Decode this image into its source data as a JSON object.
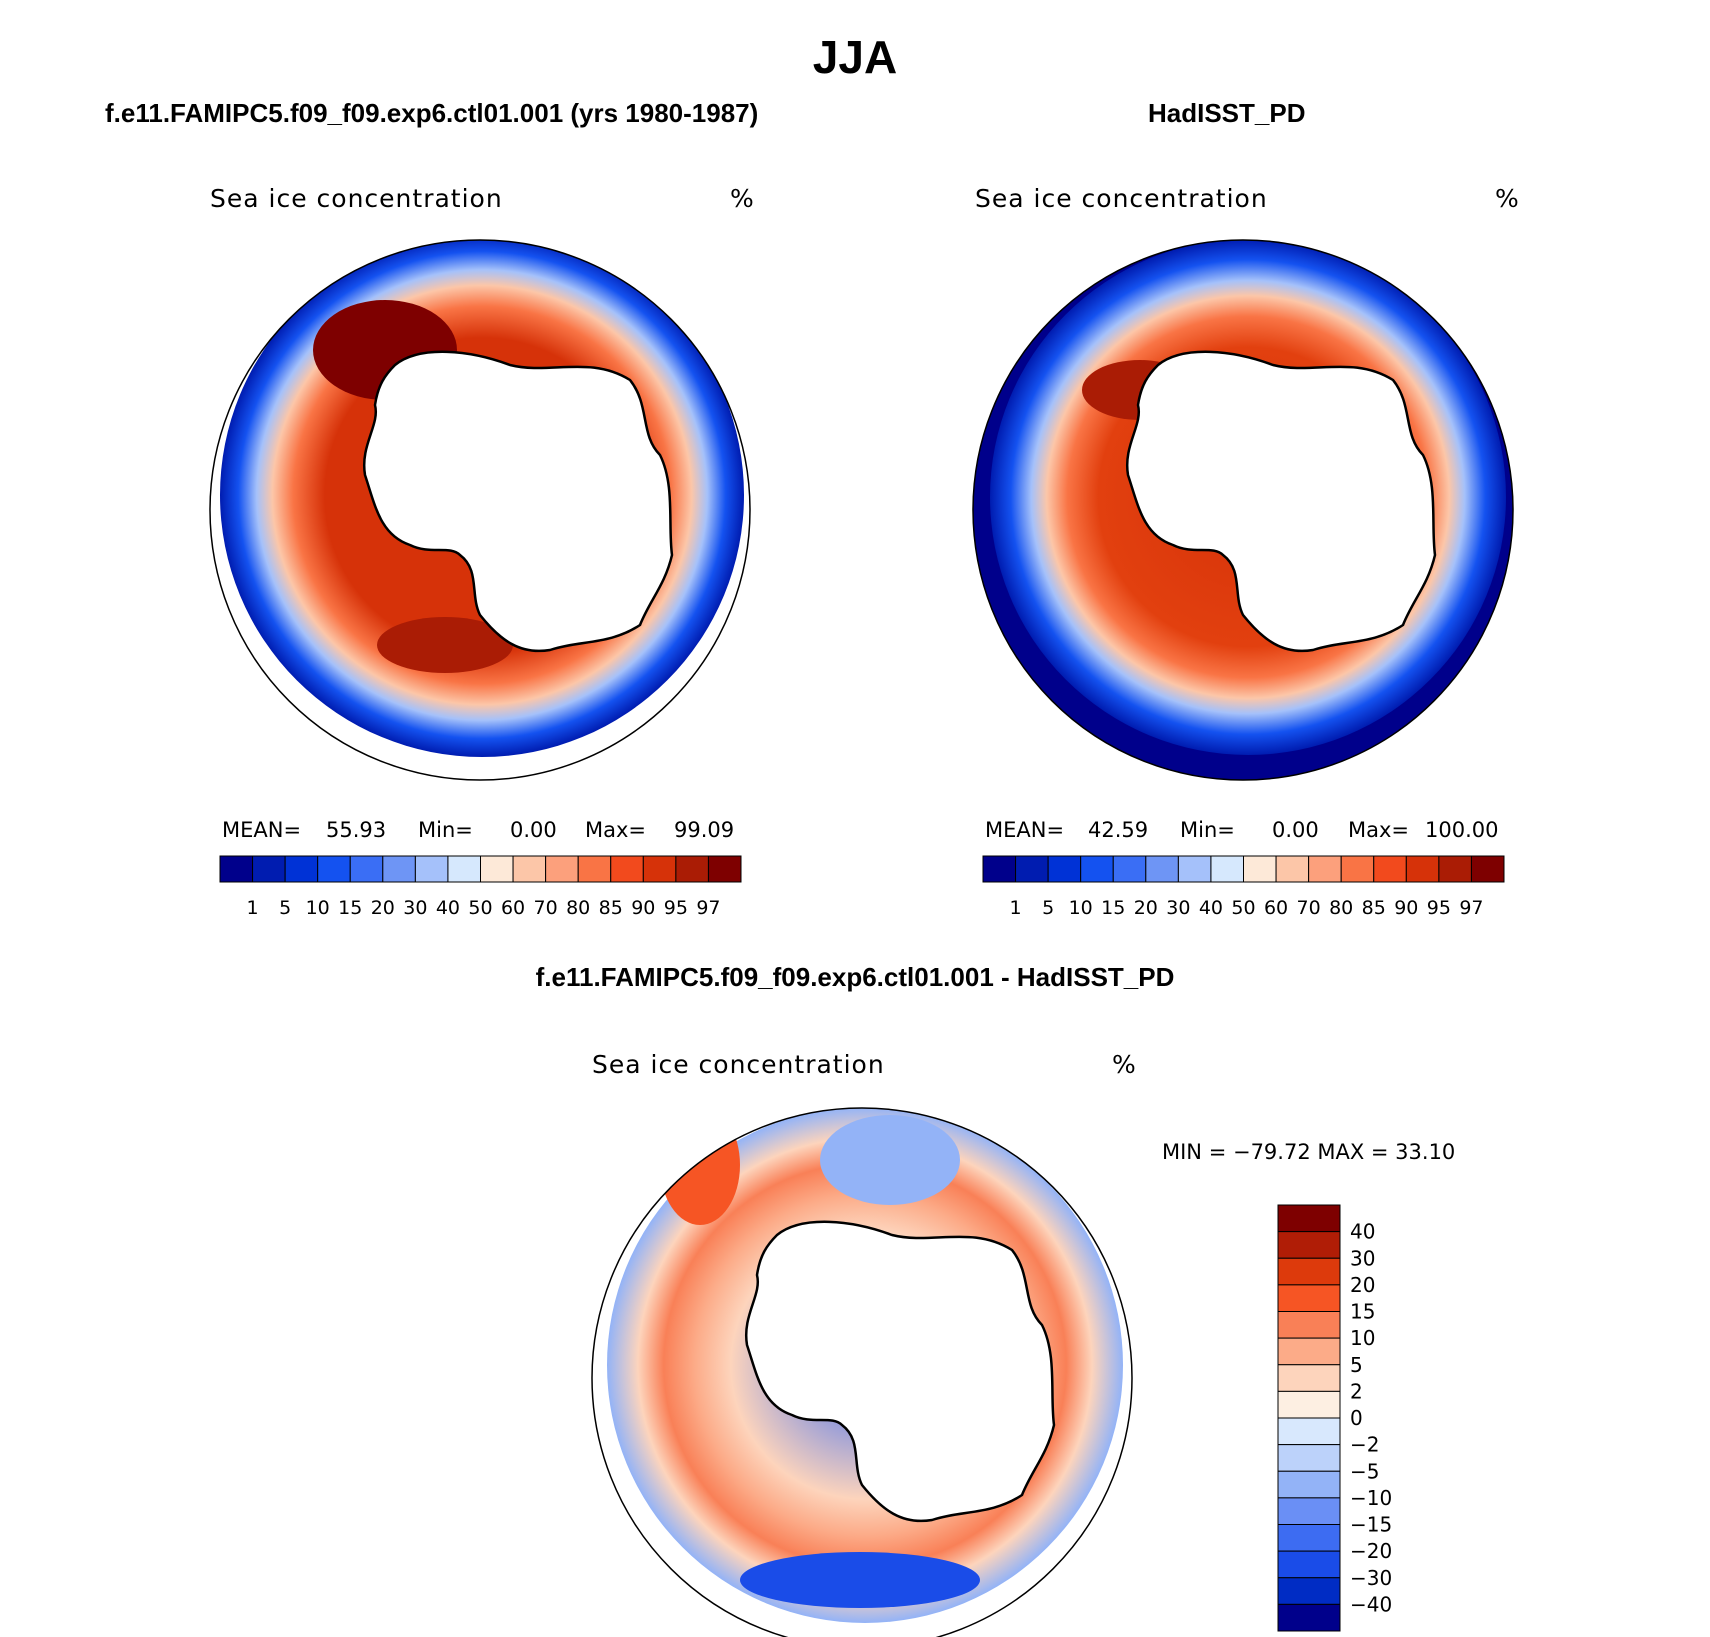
{
  "main_title": "JJA",
  "panels": [
    {
      "title": "f.e11.FAMIPC5.f09_f09.exp6.ctl01.001 (yrs 1980-1987)",
      "field_name": "Sea ice concentration",
      "units": "%",
      "mean_label": "MEAN=",
      "mean_value": "55.93",
      "min_label": "Min=",
      "min_value": "0.00",
      "max_label": "Max=",
      "max_value": "99.09"
    },
    {
      "title": "HadISST_PD",
      "field_name": "Sea ice concentration",
      "units": "%",
      "mean_label": "MEAN=",
      "mean_value": "42.59",
      "min_label": "Min=",
      "min_value": "0.00",
      "max_label": "Max=",
      "max_value": "100.00"
    },
    {
      "title": "f.e11.FAMIPC5.f09_f09.exp6.ctl01.001 - HadISST_PD",
      "field_name": "Sea ice concentration",
      "units": "%",
      "minmax_text": "MIN = −79.72 MAX =   33.10"
    }
  ],
  "colorbar_main": {
    "labels": [
      "1",
      "5",
      "10",
      "15",
      "20",
      "30",
      "40",
      "50",
      "60",
      "70",
      "80",
      "85",
      "90",
      "95",
      "97"
    ],
    "colors": [
      "#00008b",
      "#001cb0",
      "#0032d6",
      "#1452f0",
      "#3a6ef5",
      "#6e95f5",
      "#a5c1fa",
      "#d6e8fd",
      "#fde9d8",
      "#fcc6a8",
      "#fca07c",
      "#f97445",
      "#f24a1d",
      "#d63209",
      "#aa1c05",
      "#7e0000"
    ]
  },
  "colorbar_diff": {
    "labels": [
      "40",
      "30",
      "20",
      "15",
      "10",
      "5",
      "2",
      "0",
      "−2",
      "−5",
      "−10",
      "−15",
      "−20",
      "−30",
      "−40"
    ],
    "colors": [
      "#7e0000",
      "#b01d06",
      "#dd3a0c",
      "#f65524",
      "#f98057",
      "#fcab88",
      "#fdd4bc",
      "#fdefe2",
      "#d8e8fd",
      "#bcd2fa",
      "#93b3f7",
      "#6a8ff5",
      "#3d6cf2",
      "#1a4ce8",
      "#002cc4",
      "#00008b"
    ]
  }
}
